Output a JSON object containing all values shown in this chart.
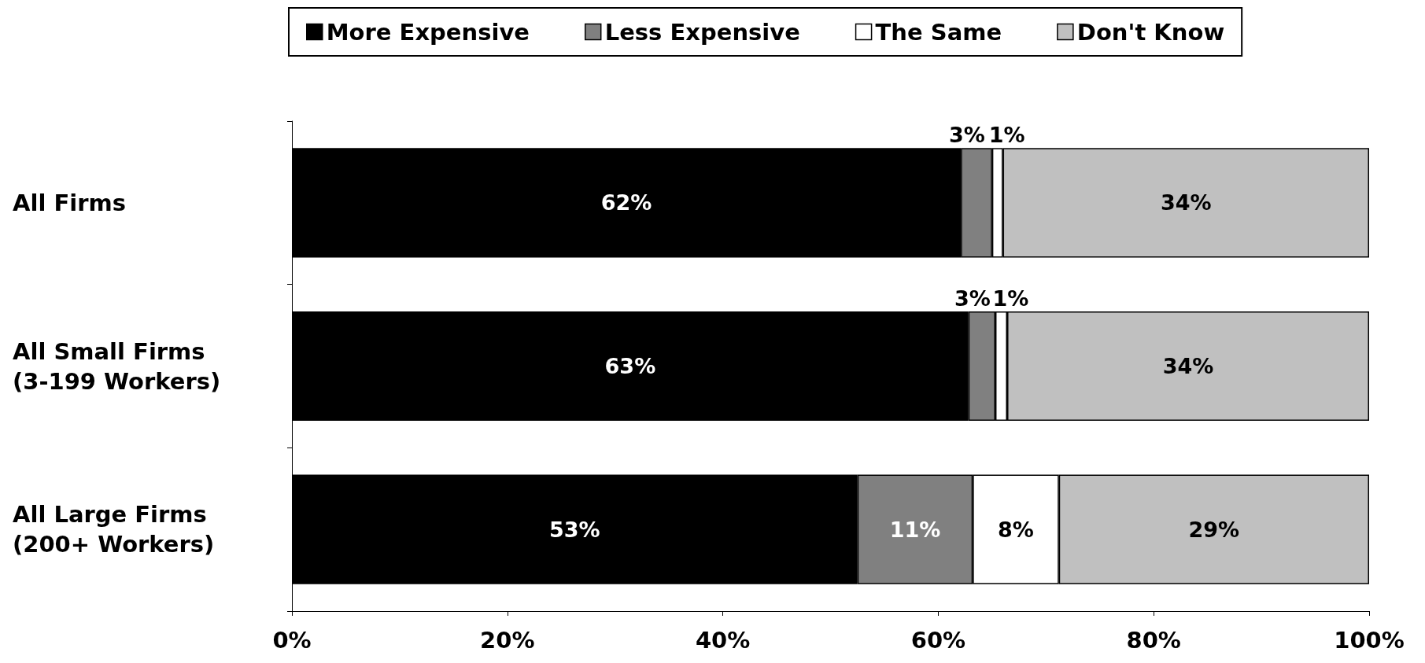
{
  "chart_data": {
    "type": "bar",
    "orientation": "horizontal",
    "stacked": true,
    "categories": [
      "All Firms",
      "All Small Firms\n(3-199 Workers)",
      "All Large Firms\n(200+ Workers)"
    ],
    "series": [
      {
        "name": "More Expensive",
        "color": "#000000",
        "values": [
          62.1,
          62.8,
          52.5
        ],
        "value_labels": [
          "62%",
          "63%",
          "53%"
        ]
      },
      {
        "name": "Less Expensive",
        "color": "#808080",
        "values": [
          2.9,
          2.5,
          10.7
        ],
        "value_labels": [
          "3%",
          "3%",
          "11%"
        ]
      },
      {
        "name": "The Same",
        "color": "#ffffff",
        "values": [
          1.0,
          1.1,
          8.0
        ],
        "value_labels": [
          "1%",
          "1%",
          "8%"
        ]
      },
      {
        "name": "Don't Know",
        "color": "#c0c0c0",
        "values": [
          34.0,
          33.6,
          28.8
        ],
        "value_labels": [
          "34%",
          "34%",
          "29%"
        ]
      }
    ],
    "xlim": [
      0,
      100
    ],
    "xticks": [
      {
        "value": 0,
        "label": "0%"
      },
      {
        "value": 20,
        "label": "20%"
      },
      {
        "value": 40,
        "label": "40%"
      },
      {
        "value": 60,
        "label": "60%"
      },
      {
        "value": 80,
        "label": "80%"
      },
      {
        "value": 100,
        "label": "100%"
      }
    ],
    "legend": "top",
    "grid": false
  }
}
